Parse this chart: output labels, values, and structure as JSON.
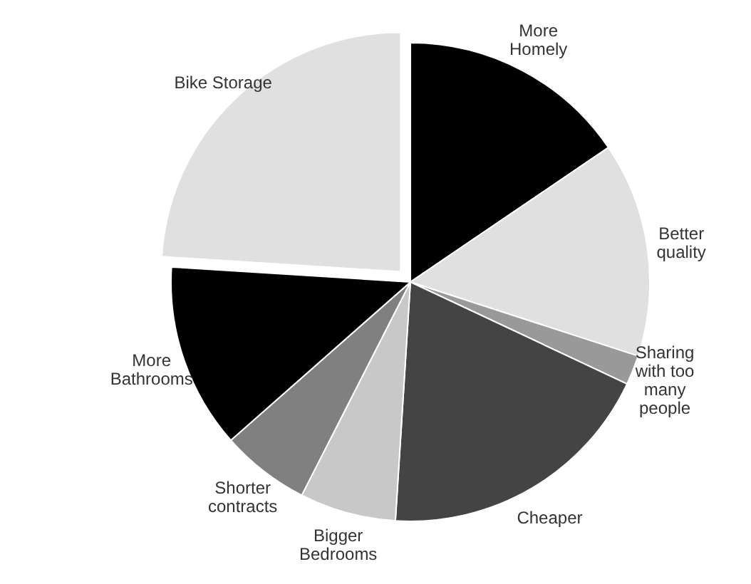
{
  "chart_data": {
    "type": "pie",
    "categories": [
      "More Homely",
      "Better quality",
      "Sharing with too many people",
      "Cheaper",
      "Bigger Bedrooms",
      "Shorter contracts",
      "More Bathrooms",
      "Bike Storage"
    ],
    "values": [
      15.5,
      14.5,
      2,
      19,
      6.5,
      6,
      12.5,
      24
    ],
    "colors": [
      "#000000",
      "#e0e0e0",
      "#999999",
      "#444444",
      "#c8c8c8",
      "#808080",
      "#000000",
      "#e0e0e0"
    ]
  }
}
